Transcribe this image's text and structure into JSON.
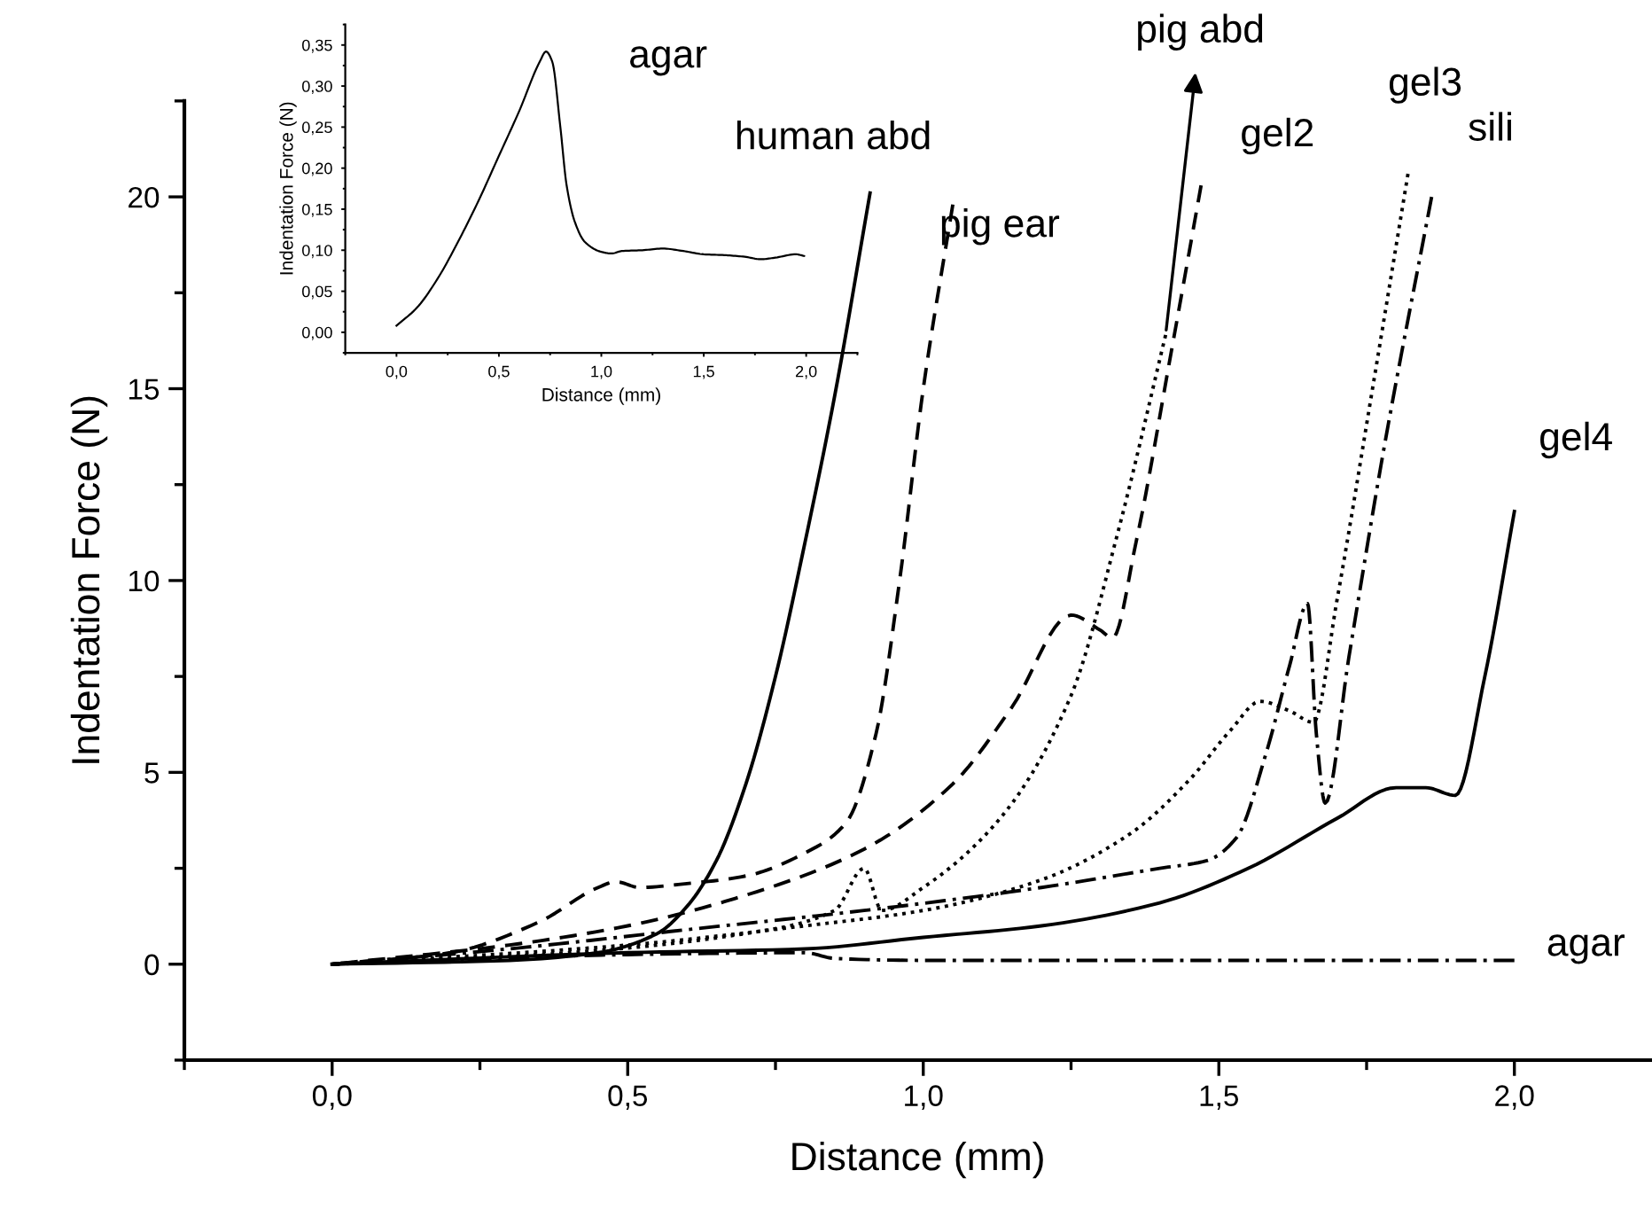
{
  "chart_data": [
    {
      "type": "line",
      "xlabel": "Distance (mm)",
      "ylabel": "Indentation Force (N)",
      "xlim": [
        -0.25,
        2.23
      ],
      "ylim": [
        -2.5,
        22.5
      ],
      "xticks": [
        {
          "value": 0,
          "label": "0,0"
        },
        {
          "value": 0.5,
          "label": "0,5"
        },
        {
          "value": 1,
          "label": "1,0"
        },
        {
          "value": 1.5,
          "label": "1,5"
        },
        {
          "value": 2,
          "label": "2,0"
        }
      ],
      "yticks": [
        0,
        5,
        10,
        15,
        20
      ],
      "grid": false,
      "legend": false,
      "series": [
        {
          "name": "human abd",
          "color": "#000000",
          "line_style": "solid",
          "x": [
            0,
            0.3,
            0.45,
            0.55,
            0.6,
            0.65,
            0.7,
            0.75,
            0.8,
            0.85,
            0.91
          ],
          "values": [
            0,
            0.1,
            0.3,
            0.8,
            1.5,
            2.7,
            4.7,
            7.5,
            11,
            14.8,
            20.1
          ]
        },
        {
          "name": "pig ear",
          "color": "#000000",
          "line_style": "dashed",
          "x": [
            0,
            0.2,
            0.35,
            0.45,
            0.48,
            0.52,
            0.6,
            0.7,
            0.8,
            0.87,
            0.92,
            0.96,
            1.0,
            1.05
          ],
          "values": [
            0,
            0.3,
            1.1,
            2.0,
            2.15,
            2.0,
            2.1,
            2.3,
            2.9,
            3.7,
            6,
            10,
            15,
            19.8
          ]
        },
        {
          "name": "pig abd",
          "color": "#000000",
          "line_style": "dotted",
          "x": [
            0,
            0.4,
            0.7,
            0.85,
            0.9,
            0.93,
            1.0,
            1.13,
            1.25,
            1.33,
            1.41
          ],
          "values": [
            0,
            0.3,
            0.8,
            1.4,
            2.5,
            1.4,
            2.0,
            3.8,
            7,
            11.3,
            16.4
          ]
        },
        {
          "name": "gel2",
          "color": "#000000",
          "line_style": "dashed",
          "x": [
            0,
            0.3,
            0.5,
            0.7,
            0.9,
            1.05,
            1.15,
            1.25,
            1.3,
            1.32,
            1.36,
            1.42,
            1.47
          ],
          "values": [
            0,
            0.5,
            1.0,
            1.8,
            3.0,
            4.7,
            6.7,
            9.1,
            8.7,
            8.5,
            11,
            16,
            20.3
          ]
        },
        {
          "name": "gel3",
          "color": "#000000",
          "line_style": "dotted",
          "x": [
            0,
            0.5,
            0.8,
            1.0,
            1.2,
            1.35,
            1.45,
            1.52,
            1.57,
            1.62,
            1.66,
            1.7,
            1.76,
            1.82
          ],
          "values": [
            0,
            0.5,
            1.0,
            1.4,
            2.2,
            3.4,
            4.8,
            6.1,
            6.85,
            6.6,
            6.3,
            9.5,
            15,
            20.6
          ]
        },
        {
          "name": "sili",
          "color": "#000000",
          "line_style": "dashdot",
          "x": [
            0,
            0.3,
            0.6,
            0.9,
            1.2,
            1.4,
            1.48,
            1.53,
            1.58,
            1.62,
            1.65,
            1.665,
            1.68,
            1.72,
            1.78,
            1.86
          ],
          "values": [
            0,
            0.4,
            0.9,
            1.4,
            2.0,
            2.5,
            2.7,
            3.3,
            5.5,
            7.8,
            9.4,
            6,
            4.2,
            8,
            13.5,
            20.0
          ]
        },
        {
          "name": "gel4",
          "color": "#000000",
          "line_style": "solid",
          "x": [
            0,
            0.5,
            0.8,
            1.0,
            1.2,
            1.4,
            1.55,
            1.7,
            1.8,
            1.85,
            1.9,
            1.95,
            2.0
          ],
          "values": [
            0,
            0.3,
            0.4,
            0.7,
            1.0,
            1.6,
            2.5,
            3.8,
            4.6,
            4.6,
            4.4,
            7.5,
            11.8
          ]
        },
        {
          "name": "agar",
          "color": "#000000",
          "line_style": "dashdot",
          "x": [
            0,
            0.5,
            0.8,
            0.85,
            1.0,
            2.0
          ],
          "values": [
            0,
            0.25,
            0.3,
            0.15,
            0.1,
            0.1
          ]
        }
      ]
    },
    {
      "type": "line",
      "title": "agar",
      "xlabel": "Distance (mm)",
      "ylabel": "Indentation Force (N)",
      "xlim": [
        -0.25,
        2.25
      ],
      "ylim": [
        -0.025,
        0.375
      ],
      "xticks": [
        {
          "value": 0,
          "label": "0,0"
        },
        {
          "value": 0.5,
          "label": "0,5"
        },
        {
          "value": 1,
          "label": "1,0"
        },
        {
          "value": 1.5,
          "label": "1,5"
        },
        {
          "value": 2,
          "label": "2,0"
        }
      ],
      "yticks": [
        {
          "value": 0,
          "label": "0,00"
        },
        {
          "value": 0.05,
          "label": "0,05"
        },
        {
          "value": 0.1,
          "label": "0,10"
        },
        {
          "value": 0.15,
          "label": "0,15"
        },
        {
          "value": 0.2,
          "label": "0,20"
        },
        {
          "value": 0.25,
          "label": "0,25"
        },
        {
          "value": 0.3,
          "label": "0,30"
        },
        {
          "value": 0.35,
          "label": "0,35"
        }
      ],
      "grid": false,
      "legend": false,
      "series": [
        {
          "color": "#000000",
          "line_style": "solid",
          "x": [
            0,
            0.1,
            0.2,
            0.3,
            0.4,
            0.5,
            0.6,
            0.7,
            0.73,
            0.76,
            0.8,
            0.83,
            0.87,
            0.92,
            1.0,
            1.05,
            1.1,
            1.2,
            1.3,
            1.4,
            1.5,
            1.6,
            1.7,
            1.78,
            1.85,
            1.95,
            1.99
          ],
          "values": [
            0.008,
            0.03,
            0.065,
            0.11,
            0.16,
            0.215,
            0.27,
            0.33,
            0.342,
            0.33,
            0.25,
            0.18,
            0.135,
            0.11,
            0.098,
            0.096,
            0.099,
            0.1,
            0.102,
            0.099,
            0.095,
            0.094,
            0.092,
            0.089,
            0.091,
            0.095,
            0.093
          ]
        }
      ]
    }
  ]
}
